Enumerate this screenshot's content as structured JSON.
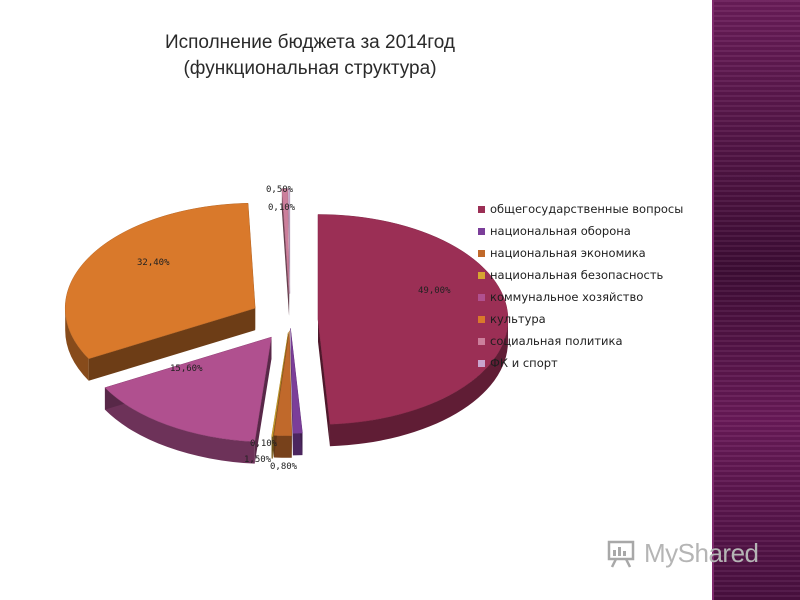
{
  "title": {
    "line1": "Исполнение бюджета за 2014год",
    "line2": "(функциональная структура)"
  },
  "colors": {
    "stripe": "#4a1040",
    "watermark": "#b5b5b5"
  },
  "watermark": {
    "text": "MyShared",
    "icon": "presentation-board-icon"
  },
  "chart_data": {
    "type": "pie",
    "title": "Исполнение бюджета за 2014год (функциональная структура)",
    "legend_position": "right",
    "slices": [
      {
        "name": "общегосударственные вопросы",
        "value": 49.0,
        "label": "49,00%",
        "color": "#9b2f55"
      },
      {
        "name": "национальная оборона",
        "value": 0.8,
        "label": "0,80%",
        "color": "#7b3e99"
      },
      {
        "name": "национальная экономика",
        "value": 1.5,
        "label": "1,50%",
        "color": "#c0692b"
      },
      {
        "name": "национальная безопасность",
        "value": 0.1,
        "label": "0,10%",
        "color": "#d6a531"
      },
      {
        "name": "коммунальное хозяйство",
        "value": 15.6,
        "label": "15,60%",
        "color": "#b0508f"
      },
      {
        "name": "культура",
        "value": 32.4,
        "label": "32,40%",
        "color": "#d9792b"
      },
      {
        "name": "социальная политика",
        "value": 0.5,
        "label": "0,50%",
        "color": "#cc7f9c"
      },
      {
        "name": "ФК и спорт",
        "value": 0.1,
        "label": "0,10%",
        "color": "#c9a6cf"
      }
    ]
  }
}
